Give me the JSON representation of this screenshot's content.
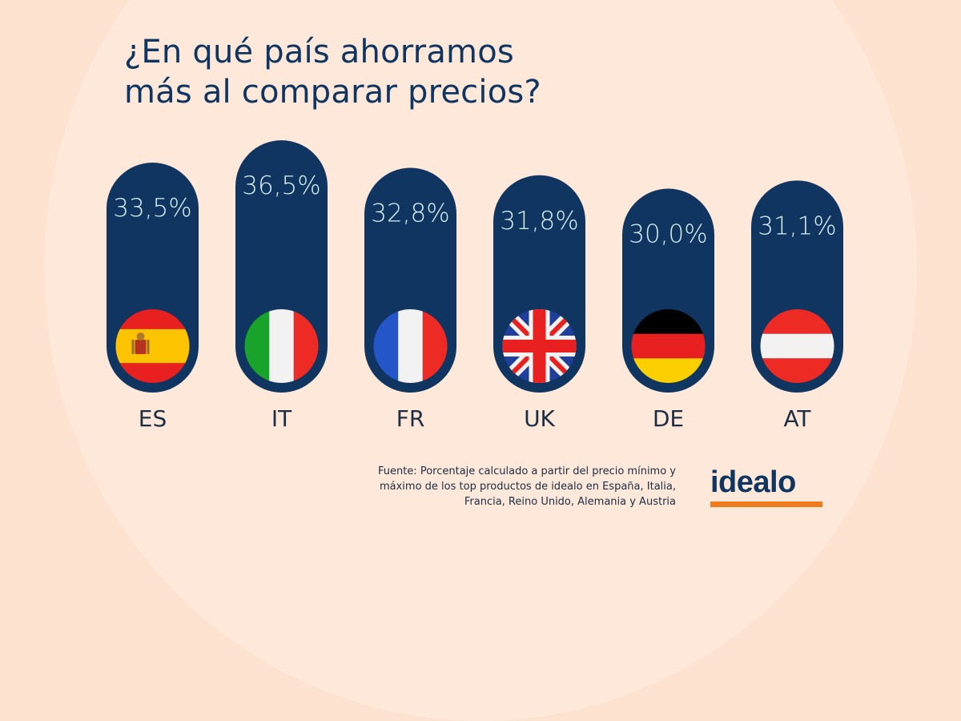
{
  "title": {
    "line1": "¿En qué país ahorramos",
    "line2": "más al comparar precios?"
  },
  "colors": {
    "background": "#fde2cf",
    "background_circle": "#fde8da",
    "pill": "#0f3560",
    "value_text": "#d6eef5",
    "title_text": "#0f3560",
    "label_text": "#1c2d44",
    "logo_accent": "#f07b1d"
  },
  "chart_data": {
    "type": "bar",
    "title": "¿En qué país ahorramos más al comparar precios?",
    "xlabel": "",
    "ylabel": "",
    "categories": [
      "ES",
      "IT",
      "FR",
      "UK",
      "DE",
      "AT"
    ],
    "values": [
      33.5,
      36.5,
      32.8,
      31.8,
      30.0,
      31.1
    ],
    "value_labels": [
      "33,5%",
      "36,5%",
      "32,8%",
      "31,8%",
      "30,0%",
      "31,1%"
    ],
    "flags": [
      "spain-flag",
      "italy-flag",
      "france-flag",
      "uk-flag",
      "germany-flag",
      "austria-flag"
    ],
    "unit": "%",
    "grid": false,
    "legend": "none"
  },
  "source": {
    "line1": "Fuente: Porcentaje calculado a partir del precio mínimo y",
    "line2": "máximo de los top productos de idealo en España, Italia,",
    "line3": "Francia, Reino Unido, Alemania y Austria"
  },
  "logo": {
    "text": "idealo"
  }
}
